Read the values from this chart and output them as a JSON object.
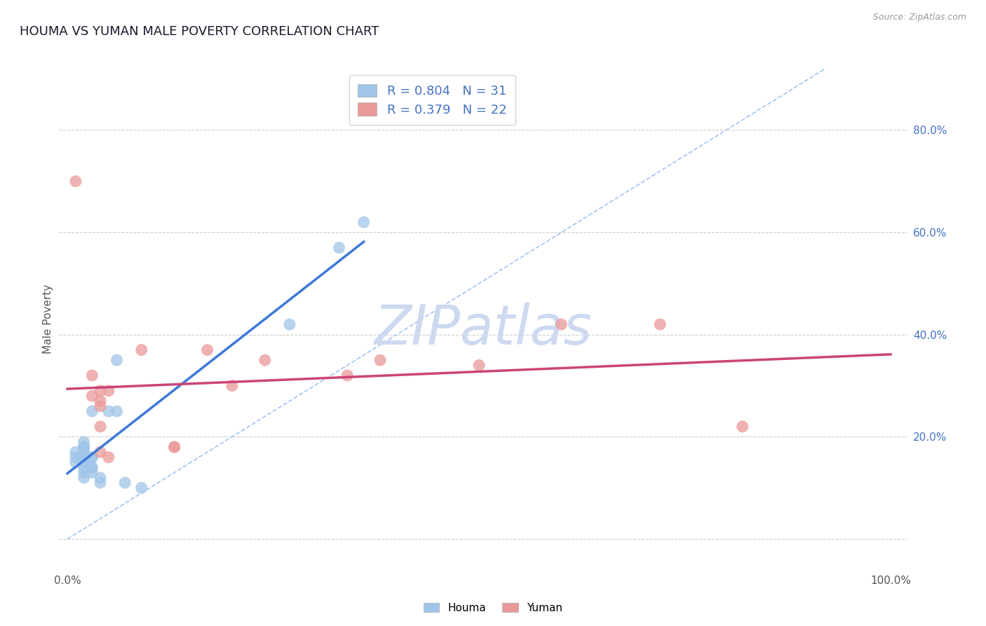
{
  "title": "HOUMA VS YUMAN MALE POVERTY CORRELATION CHART",
  "source": "Source: ZipAtlas.com",
  "ylabel": "Male Poverty",
  "xlabel": "",
  "xlim": [
    -0.01,
    1.02
  ],
  "ylim": [
    -0.06,
    0.92
  ],
  "x_ticks": [
    0.0,
    0.2,
    0.4,
    0.6,
    0.8,
    1.0
  ],
  "x_tick_labels": [
    "0.0%",
    "",
    "",
    "",
    "",
    "100.0%"
  ],
  "y_tick_vals_right": [
    0.0,
    0.2,
    0.4,
    0.6,
    0.8
  ],
  "houma_R": "0.804",
  "houma_N": "31",
  "yuman_R": "0.379",
  "yuman_N": "22",
  "houma_color": "#9fc5e8",
  "yuman_color": "#ea9999",
  "houma_line_color": "#3c78d8",
  "yuman_line_color": "#cc4477",
  "diagonal_color": "#a4c2f4",
  "houma_points": [
    [
      0.01,
      0.16
    ],
    [
      0.01,
      0.15
    ],
    [
      0.01,
      0.17
    ],
    [
      0.02,
      0.19
    ],
    [
      0.02,
      0.18
    ],
    [
      0.02,
      0.16
    ],
    [
      0.02,
      0.18
    ],
    [
      0.02,
      0.15
    ],
    [
      0.02,
      0.13
    ],
    [
      0.02,
      0.12
    ],
    [
      0.02,
      0.17
    ],
    [
      0.02,
      0.18
    ],
    [
      0.02,
      0.14
    ],
    [
      0.02,
      0.16
    ],
    [
      0.02,
      0.15
    ],
    [
      0.03,
      0.16
    ],
    [
      0.03,
      0.14
    ],
    [
      0.03,
      0.16
    ],
    [
      0.03,
      0.14
    ],
    [
      0.03,
      0.13
    ],
    [
      0.03,
      0.25
    ],
    [
      0.04,
      0.12
    ],
    [
      0.04,
      0.11
    ],
    [
      0.05,
      0.25
    ],
    [
      0.06,
      0.35
    ],
    [
      0.06,
      0.25
    ],
    [
      0.07,
      0.11
    ],
    [
      0.09,
      0.1
    ],
    [
      0.27,
      0.42
    ],
    [
      0.33,
      0.57
    ],
    [
      0.36,
      0.62
    ]
  ],
  "yuman_points": [
    [
      0.01,
      0.7
    ],
    [
      0.03,
      0.32
    ],
    [
      0.03,
      0.28
    ],
    [
      0.04,
      0.27
    ],
    [
      0.04,
      0.29
    ],
    [
      0.04,
      0.26
    ],
    [
      0.04,
      0.22
    ],
    [
      0.04,
      0.17
    ],
    [
      0.05,
      0.16
    ],
    [
      0.05,
      0.29
    ],
    [
      0.09,
      0.37
    ],
    [
      0.13,
      0.18
    ],
    [
      0.13,
      0.18
    ],
    [
      0.17,
      0.37
    ],
    [
      0.2,
      0.3
    ],
    [
      0.24,
      0.35
    ],
    [
      0.34,
      0.32
    ],
    [
      0.38,
      0.35
    ],
    [
      0.5,
      0.34
    ],
    [
      0.6,
      0.42
    ],
    [
      0.72,
      0.42
    ],
    [
      0.82,
      0.22
    ]
  ],
  "background_color": "#ffffff",
  "grid_color": "#cccccc",
  "title_color": "#1a1a2e",
  "axis_color": "#555555",
  "right_tick_color": "#4472c4",
  "watermark_text": "ZIPatlas",
  "watermark_color": "#ccd9f0"
}
